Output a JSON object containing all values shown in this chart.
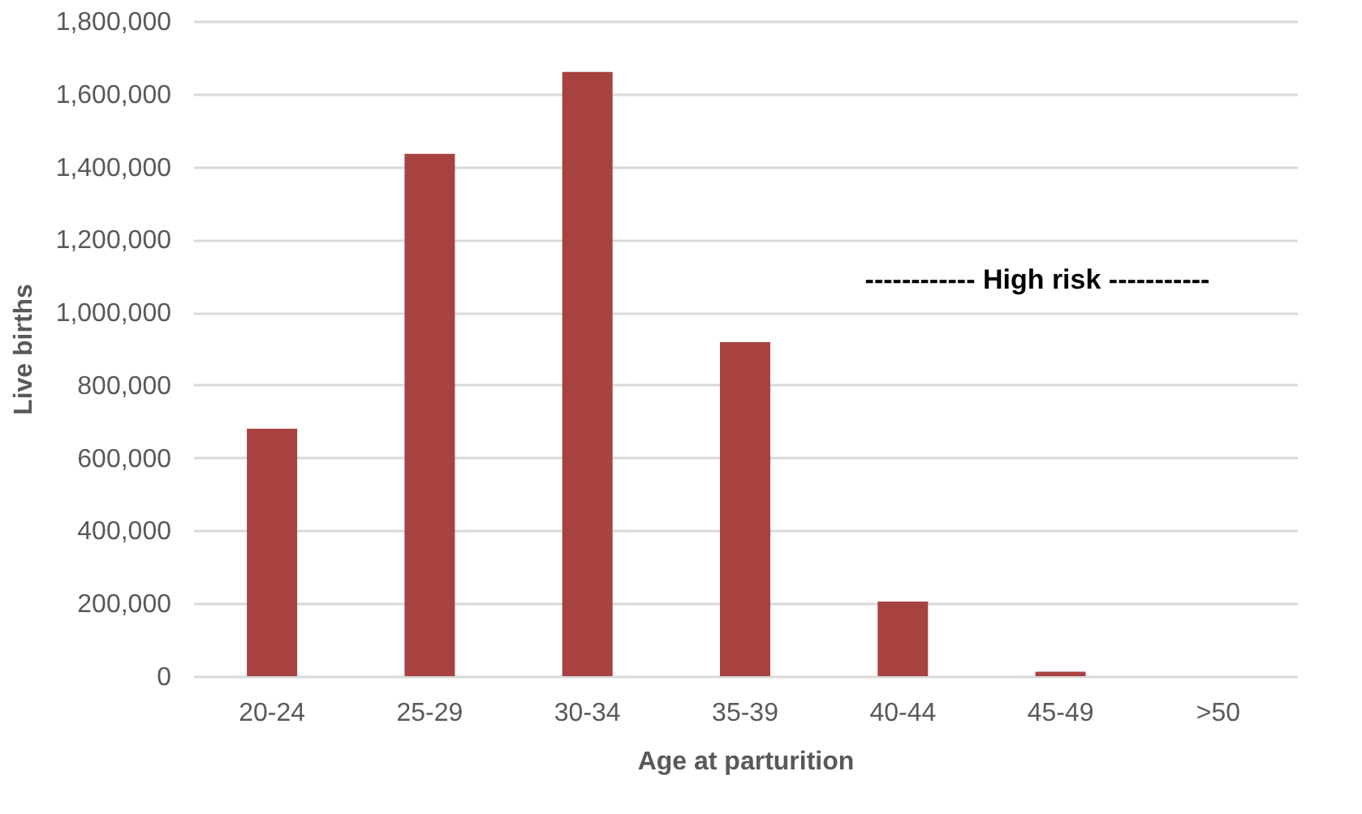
{
  "chart_data": {
    "type": "bar",
    "xlabel": "Age at parturition",
    "ylabel": "Live births",
    "categories": [
      "20-24",
      "25-29",
      "30-34",
      "35-39",
      "40-44",
      "45-49",
      ">50"
    ],
    "values": [
      680000,
      1435000,
      1660000,
      918000,
      205000,
      12000,
      0
    ],
    "color": "#a84240",
    "ylim": [
      0,
      1800000
    ],
    "yticks": [
      0,
      {
        "value": 200000,
        "label": "200,000"
      },
      {
        "value": 400000,
        "label": "400,000"
      },
      {
        "value": 600000,
        "label": "600,000"
      },
      {
        "value": 800000,
        "label": "800,000"
      },
      {
        "value": 1000000,
        "label": "1,000,000"
      },
      {
        "value": 1200000,
        "label": "1,200,000"
      },
      {
        "value": 1400000,
        "label": "1,400,000"
      },
      {
        "value": 1600000,
        "label": "1,600,000"
      },
      {
        "value": 1800000,
        "label": "1,800,000"
      }
    ],
    "grid": "y",
    "annotations": [
      "------------ High risk -----------"
    ]
  }
}
